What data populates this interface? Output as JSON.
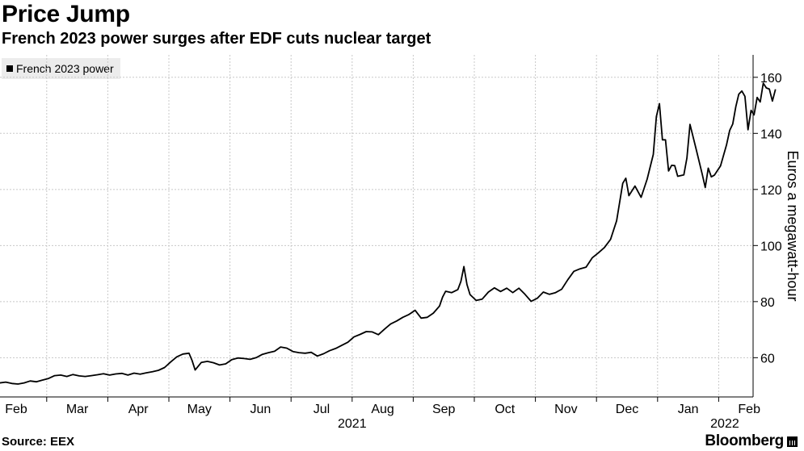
{
  "header": {
    "title": "Price Jump",
    "subtitle": "French 2023 power surges after EDF cuts nuclear target"
  },
  "footer": {
    "source": "Source: EEX",
    "brand": "Bloomberg"
  },
  "chart_data": {
    "type": "line",
    "title": "Price Jump",
    "subtitle": "French 2023 power surges after EDF cuts nuclear target",
    "ylabel": "Euros a megawatt-hour",
    "xlabel": "",
    "ylim": [
      46,
      168
    ],
    "yticks": [
      60,
      80,
      100,
      120,
      140,
      160
    ],
    "grid": true,
    "legend_position": "top-left",
    "month_ticks": [
      "Feb",
      "Mar",
      "Apr",
      "May",
      "Jun",
      "Jul",
      "Aug",
      "Sep",
      "Oct",
      "Nov",
      "Dec",
      "Jan",
      "Feb"
    ],
    "year_labels": [
      {
        "label": "2021",
        "month_index": 5.5
      },
      {
        "label": "2022",
        "month_index": 11.6
      }
    ],
    "series": [
      {
        "name": "French 2023 power",
        "color": "#000000",
        "points": [
          [
            0.0,
            51
          ],
          [
            0.1,
            51.3
          ],
          [
            0.2,
            50.8
          ],
          [
            0.3,
            50.6
          ],
          [
            0.4,
            51
          ],
          [
            0.5,
            51.7
          ],
          [
            0.6,
            51.4
          ],
          [
            0.7,
            52
          ],
          [
            0.8,
            52.6
          ],
          [
            0.9,
            53.6
          ],
          [
            1.0,
            53.8
          ],
          [
            1.1,
            53.3
          ],
          [
            1.2,
            54
          ],
          [
            1.3,
            53.5
          ],
          [
            1.4,
            53.3
          ],
          [
            1.5,
            53.6
          ],
          [
            1.6,
            53.9
          ],
          [
            1.7,
            54.3
          ],
          [
            1.8,
            53.8
          ],
          [
            1.9,
            54.2
          ],
          [
            2.0,
            54.4
          ],
          [
            2.1,
            53.8
          ],
          [
            2.2,
            54.5
          ],
          [
            2.3,
            54.1
          ],
          [
            2.4,
            54.6
          ],
          [
            2.5,
            55
          ],
          [
            2.6,
            55.5
          ],
          [
            2.7,
            56.5
          ],
          [
            2.8,
            58.5
          ],
          [
            2.9,
            60.3
          ],
          [
            3.0,
            61.3
          ],
          [
            3.1,
            61.6
          ],
          [
            3.15,
            59
          ],
          [
            3.2,
            55.6
          ],
          [
            3.3,
            58.3
          ],
          [
            3.4,
            58.7
          ],
          [
            3.5,
            58.2
          ],
          [
            3.6,
            57.4
          ],
          [
            3.7,
            57.8
          ],
          [
            3.8,
            59.3
          ],
          [
            3.9,
            59.9
          ],
          [
            4.0,
            59.7
          ],
          [
            4.1,
            59.4
          ],
          [
            4.2,
            60
          ],
          [
            4.3,
            61.2
          ],
          [
            4.4,
            61.8
          ],
          [
            4.5,
            62.3
          ],
          [
            4.6,
            63.8
          ],
          [
            4.7,
            63.4
          ],
          [
            4.8,
            62.2
          ],
          [
            4.9,
            61.8
          ],
          [
            5.0,
            61.6
          ],
          [
            5.1,
            61.9
          ],
          [
            5.2,
            60.6
          ],
          [
            5.3,
            61.4
          ],
          [
            5.4,
            62.5
          ],
          [
            5.5,
            63.3
          ],
          [
            5.6,
            64.4
          ],
          [
            5.7,
            65.5
          ],
          [
            5.8,
            67.4
          ],
          [
            5.9,
            68.3
          ],
          [
            6.0,
            69.3
          ],
          [
            6.1,
            69.2
          ],
          [
            6.2,
            68.2
          ],
          [
            6.3,
            70.2
          ],
          [
            6.4,
            72
          ],
          [
            6.5,
            73.1
          ],
          [
            6.6,
            74.4
          ],
          [
            6.7,
            75.4
          ],
          [
            6.8,
            76.9
          ],
          [
            6.9,
            74.1
          ],
          [
            7.0,
            74.4
          ],
          [
            7.1,
            75.9
          ],
          [
            7.2,
            78.4
          ],
          [
            7.25,
            81.6
          ],
          [
            7.3,
            83.7
          ],
          [
            7.4,
            83.2
          ],
          [
            7.5,
            84.3
          ],
          [
            7.55,
            87.2
          ],
          [
            7.6,
            92.5
          ],
          [
            7.65,
            86.1
          ],
          [
            7.7,
            82.5
          ],
          [
            7.8,
            80.4
          ],
          [
            7.9,
            80.9
          ],
          [
            8.0,
            83.4
          ],
          [
            8.1,
            84.9
          ],
          [
            8.2,
            83.6
          ],
          [
            8.3,
            84.8
          ],
          [
            8.4,
            83.2
          ],
          [
            8.5,
            84.8
          ],
          [
            8.6,
            82.6
          ],
          [
            8.7,
            80.1
          ],
          [
            8.8,
            81.2
          ],
          [
            8.9,
            83.4
          ],
          [
            9.0,
            82.6
          ],
          [
            9.1,
            83.2
          ],
          [
            9.2,
            84.4
          ],
          [
            9.3,
            87.8
          ],
          [
            9.4,
            90.8
          ],
          [
            9.5,
            91.7
          ],
          [
            9.6,
            92.3
          ],
          [
            9.7,
            95.6
          ],
          [
            9.8,
            97.4
          ],
          [
            9.9,
            99.3
          ],
          [
            10.0,
            102.2
          ],
          [
            10.1,
            108.8
          ],
          [
            10.2,
            122.2
          ],
          [
            10.25,
            124
          ],
          [
            10.3,
            117.8
          ],
          [
            10.4,
            121.2
          ],
          [
            10.5,
            117.2
          ],
          [
            10.6,
            123.7
          ],
          [
            10.7,
            132.5
          ],
          [
            10.75,
            146
          ],
          [
            10.8,
            150.6
          ],
          [
            10.85,
            137.7
          ],
          [
            10.9,
            137.7
          ],
          [
            10.95,
            126.6
          ],
          [
            11.0,
            128.6
          ],
          [
            11.05,
            128.5
          ],
          [
            11.1,
            124.7
          ],
          [
            11.2,
            125.2
          ],
          [
            11.25,
            131.2
          ],
          [
            11.3,
            143.2
          ],
          [
            11.4,
            134.5
          ],
          [
            11.5,
            125.5
          ],
          [
            11.55,
            120.7
          ],
          [
            11.6,
            127.6
          ],
          [
            11.65,
            124.5
          ],
          [
            11.7,
            125.1
          ],
          [
            11.8,
            128.4
          ],
          [
            11.9,
            136
          ],
          [
            11.95,
            141
          ],
          [
            12.0,
            143.3
          ],
          [
            12.05,
            149.5
          ],
          [
            12.1,
            154
          ],
          [
            12.15,
            155.1
          ],
          [
            12.2,
            153.2
          ],
          [
            12.25,
            141.3
          ],
          [
            12.3,
            148.2
          ],
          [
            12.35,
            146.6
          ],
          [
            12.4,
            152.8
          ],
          [
            12.45,
            151.2
          ],
          [
            12.5,
            157.9
          ],
          [
            12.55,
            156.2
          ],
          [
            12.6,
            155.8
          ],
          [
            12.65,
            151.5
          ],
          [
            12.7,
            155.7
          ]
        ]
      }
    ]
  }
}
